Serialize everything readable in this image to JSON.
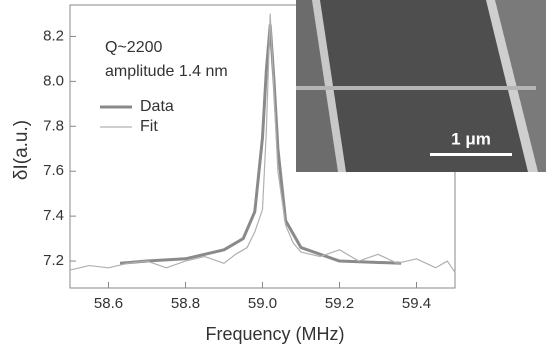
{
  "chart_data": {
    "type": "line",
    "x_label": "Frequency (MHz)",
    "y_label": "δI(a.u.)",
    "annotations": [
      "Q~2200",
      "amplitude 1.4 nm"
    ],
    "inset_label": "1 μm",
    "xlim": [
      58.5,
      59.5
    ],
    "xticks": [
      58.6,
      58.8,
      {
        "value": 59,
        "label": "59.0"
      },
      59.2,
      59.4
    ],
    "ylim": [
      7.08,
      8.34
    ],
    "yticks": [
      7.2,
      7.4,
      7.6,
      7.8,
      {
        "value": 8,
        "label": "8.0"
      },
      8.2
    ],
    "series": [
      {
        "name": "Data",
        "color": "#8a8a8a",
        "width": 3,
        "x": [
          58.63,
          58.7,
          58.8,
          58.9,
          58.95,
          58.98,
          59.0,
          59.01,
          59.02,
          59.03,
          59.04,
          59.06,
          59.1,
          59.2,
          59.36
        ],
        "values": [
          7.19,
          7.2,
          7.21,
          7.25,
          7.3,
          7.42,
          7.75,
          8.05,
          8.25,
          8.0,
          7.7,
          7.38,
          7.26,
          7.2,
          7.19
        ]
      },
      {
        "name": "Fit",
        "color": "#b0b0b0",
        "width": 1.2,
        "x": [
          58.5,
          58.55,
          58.6,
          58.65,
          58.7,
          58.75,
          58.8,
          58.85,
          58.9,
          58.93,
          58.96,
          58.98,
          59.0,
          59.01,
          59.02,
          59.03,
          59.04,
          59.06,
          59.08,
          59.1,
          59.15,
          59.2,
          59.25,
          59.3,
          59.35,
          59.4,
          59.45,
          59.48,
          59.5
        ],
        "values": [
          7.16,
          7.18,
          7.17,
          7.19,
          7.2,
          7.17,
          7.2,
          7.22,
          7.19,
          7.23,
          7.26,
          7.33,
          7.43,
          7.78,
          8.3,
          7.95,
          7.6,
          7.36,
          7.28,
          7.24,
          7.22,
          7.25,
          7.2,
          7.23,
          7.19,
          7.21,
          7.17,
          7.2,
          7.15
        ]
      }
    ]
  }
}
